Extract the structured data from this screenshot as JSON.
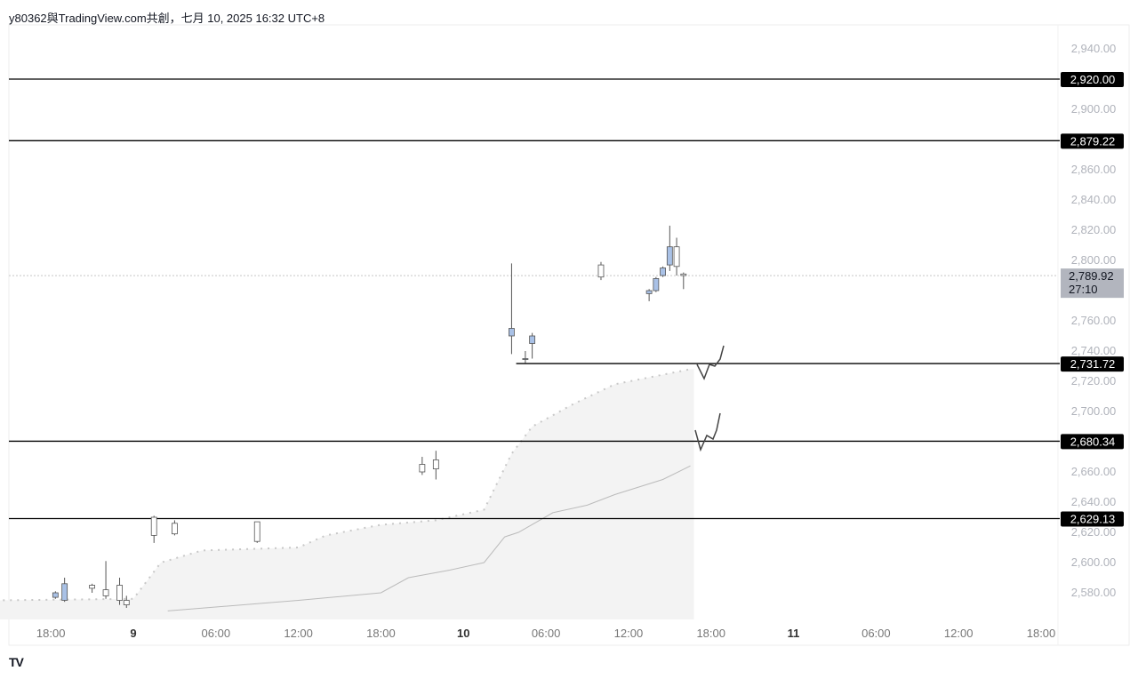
{
  "header": {
    "caption": "y80362與TradingView.com共創，七月 10, 2025 16:32 UTC+8"
  },
  "logo": "TV",
  "chart_data": {
    "type": "candlestick",
    "ylim": [
      2562,
      2956
    ],
    "y_ticks": [
      "2,940.00",
      "2,900.00",
      "2,860.00",
      "2,840.00",
      "2,820.00",
      "2,800.00",
      "2,760.00",
      "2,740.00",
      "2,720.00",
      "2,700.00",
      "2,660.00",
      "2,640.00",
      "2,620.00",
      "2,600.00",
      "2,580.00"
    ],
    "y_tick_values": [
      2940,
      2900,
      2860,
      2840,
      2820,
      2800,
      2760,
      2740,
      2720,
      2700,
      2660,
      2640,
      2620,
      2600,
      2580
    ],
    "x_ticks": [
      {
        "label": "18:00",
        "t": "07-08 18:00",
        "bold": false
      },
      {
        "label": "9",
        "t": "07-09 00:00",
        "bold": true
      },
      {
        "label": "06:00",
        "t": "07-09 06:00",
        "bold": false
      },
      {
        "label": "12:00",
        "t": "07-09 12:00",
        "bold": false
      },
      {
        "label": "18:00",
        "t": "07-09 18:00",
        "bold": false
      },
      {
        "label": "10",
        "t": "07-10 00:00",
        "bold": true
      },
      {
        "label": "06:00",
        "t": "07-10 06:00",
        "bold": false
      },
      {
        "label": "12:00",
        "t": "07-10 12:00",
        "bold": false
      },
      {
        "label": "18:00",
        "t": "07-10 18:00",
        "bold": false
      },
      {
        "label": "11",
        "t": "07-11 00:00",
        "bold": true
      },
      {
        "label": "06:00",
        "t": "07-11 06:00",
        "bold": false
      },
      {
        "label": "12:00",
        "t": "07-11 12:00",
        "bold": false
      },
      {
        "label": "18:00",
        "t": "07-11 18:00",
        "bold": false
      }
    ],
    "levels": [
      {
        "value": 2920.0,
        "label": "2,920.00",
        "start": "07-08 14:00"
      },
      {
        "value": 2879.22,
        "label": "2,879.22",
        "start": "07-08 14:00"
      },
      {
        "value": 2731.72,
        "label": "2,731.72",
        "start": "07-10 03:50"
      },
      {
        "value": 2680.34,
        "label": "2,680.34",
        "start": "07-08 14:00"
      },
      {
        "value": 2629.13,
        "label": "2,629.13",
        "start": "07-08 14:00"
      }
    ],
    "current_price": {
      "value": 2789.92,
      "label": "2,789.92",
      "countdown": "27:10"
    },
    "candles": [
      {
        "t": "07-08 18:20",
        "o": 2577,
        "h": 2581,
        "l": 2576,
        "c": 2580
      },
      {
        "t": "07-08 19:00",
        "o": 2575,
        "h": 2590,
        "l": 2574,
        "c": 2586
      },
      {
        "t": "07-08 21:00",
        "o": 2585,
        "h": 2586,
        "l": 2580,
        "c": 2583
      },
      {
        "t": "07-08 22:00",
        "o": 2582,
        "h": 2601,
        "l": 2576,
        "c": 2578
      },
      {
        "t": "07-08 23:00",
        "o": 2585,
        "h": 2590,
        "l": 2572,
        "c": 2575
      },
      {
        "t": "07-08 23:30",
        "o": 2575,
        "h": 2578,
        "l": 2570,
        "c": 2572
      },
      {
        "t": "07-09 01:30",
        "o": 2630,
        "h": 2631,
        "l": 2613,
        "c": 2618
      },
      {
        "t": "07-09 03:00",
        "o": 2626,
        "h": 2628,
        "l": 2618,
        "c": 2619
      },
      {
        "t": "07-09 09:00",
        "o": 2627,
        "h": 2627,
        "l": 2613,
        "c": 2614
      },
      {
        "t": "07-09 21:00",
        "o": 2665,
        "h": 2670,
        "l": 2658,
        "c": 2660
      },
      {
        "t": "07-09 22:00",
        "o": 2668,
        "h": 2674,
        "l": 2655,
        "c": 2662
      },
      {
        "t": "07-10 03:30",
        "o": 2750,
        "h": 2798,
        "l": 2738,
        "c": 2755
      },
      {
        "t": "07-10 04:30",
        "o": 2735,
        "h": 2740,
        "l": 2732,
        "c": 2735
      },
      {
        "t": "07-10 05:00",
        "o": 2745,
        "h": 2752,
        "l": 2735,
        "c": 2750
      },
      {
        "t": "07-10 10:00",
        "o": 2797,
        "h": 2799,
        "l": 2787,
        "c": 2789
      },
      {
        "t": "07-10 13:30",
        "o": 2778,
        "h": 2781,
        "l": 2773,
        "c": 2780
      },
      {
        "t": "07-10 14:00",
        "o": 2780,
        "h": 2789,
        "l": 2779,
        "c": 2788
      },
      {
        "t": "07-10 14:30",
        "o": 2790,
        "h": 2796,
        "l": 2789,
        "c": 2795
      },
      {
        "t": "07-10 15:00",
        "o": 2797,
        "h": 2823,
        "l": 2793,
        "c": 2809
      },
      {
        "t": "07-10 15:30",
        "o": 2809,
        "h": 2815,
        "l": 2790,
        "c": 2796
      },
      {
        "t": "07-10 16:00",
        "o": 2791,
        "h": 2792,
        "l": 2781,
        "c": 2790
      }
    ],
    "band_upper": [
      {
        "t": "07-08 14:00",
        "v": 2575
      },
      {
        "t": "07-09 00:00",
        "v": 2576
      },
      {
        "t": "07-09 02:00",
        "v": 2600
      },
      {
        "t": "07-09 05:00",
        "v": 2608
      },
      {
        "t": "07-09 12:00",
        "v": 2610
      },
      {
        "t": "07-09 14:00",
        "v": 2618
      },
      {
        "t": "07-09 18:00",
        "v": 2625
      },
      {
        "t": "07-09 22:00",
        "v": 2628
      },
      {
        "t": "07-10 01:30",
        "v": 2635
      },
      {
        "t": "07-10 03:30",
        "v": 2672
      },
      {
        "t": "07-10 05:00",
        "v": 2690
      },
      {
        "t": "07-10 08:00",
        "v": 2705
      },
      {
        "t": "07-10 11:00",
        "v": 2718
      },
      {
        "t": "07-10 16:30",
        "v": 2728
      }
    ],
    "lower_line": [
      {
        "t": "07-09 02:30",
        "v": 2568
      },
      {
        "t": "07-09 12:00",
        "v": 2575
      },
      {
        "t": "07-09 18:00",
        "v": 2580
      },
      {
        "t": "07-09 20:00",
        "v": 2590
      },
      {
        "t": "07-09 23:00",
        "v": 2595
      },
      {
        "t": "07-10 01:30",
        "v": 2600
      },
      {
        "t": "07-10 03:00",
        "v": 2617
      },
      {
        "t": "07-10 04:00",
        "v": 2620
      },
      {
        "t": "07-10 06:30",
        "v": 2633
      },
      {
        "t": "07-10 09:00",
        "v": 2638
      },
      {
        "t": "07-10 11:00",
        "v": 2645
      },
      {
        "t": "07-10 14:30",
        "v": 2655
      },
      {
        "t": "07-10 16:30",
        "v": 2664
      }
    ],
    "colors": {
      "up": "#a9c1e6",
      "down": "#ffffff",
      "wick": "#555555",
      "level": "#000000",
      "label_bg": "#000000",
      "price_label_bg": "#b2b5be",
      "band": "#f3f3f3"
    }
  }
}
